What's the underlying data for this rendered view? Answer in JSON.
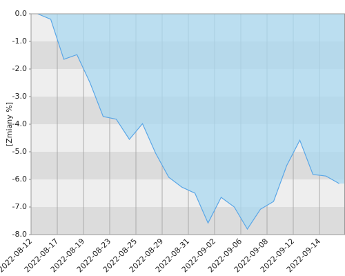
{
  "chart_data": {
    "type": "area",
    "y_label": "[Zmiany %]",
    "categories": [
      "2022-08-12",
      null,
      "2022-08-17",
      null,
      "2022-08-19",
      null,
      "2022-08-23",
      null,
      "2022-08-25",
      null,
      "2022-08-29",
      null,
      "2022-08-31",
      null,
      "2022-09-02",
      null,
      "2022-09-06",
      null,
      "2022-09-08",
      null,
      "2022-09-12",
      null,
      "2022-09-14",
      null
    ],
    "values": [
      0.0,
      -0.2,
      -1.65,
      -1.48,
      -2.5,
      -3.72,
      -3.82,
      -4.55,
      -3.98,
      -5.05,
      -5.92,
      -6.28,
      -6.5,
      -7.58,
      -6.65,
      -7.0,
      -7.8,
      -7.08,
      -6.8,
      -5.5,
      -4.58,
      -5.82,
      -5.88,
      -6.15
    ],
    "color": "#5aa6e6",
    "fill": "#a9d8f0",
    "ylim": [
      -8,
      0
    ],
    "yticks": [
      {
        "value": 0,
        "label": "0.0"
      },
      {
        "value": -1,
        "label": "-1.0"
      },
      {
        "value": -2,
        "label": "-2.0"
      },
      {
        "value": -3,
        "label": "-3.0"
      },
      {
        "value": -4,
        "label": "-4.0"
      },
      {
        "value": -5,
        "label": "-5.0"
      },
      {
        "value": -6,
        "label": "-6.0"
      },
      {
        "value": -7,
        "label": "-7.0"
      },
      {
        "value": -8,
        "label": "-8.0"
      }
    ],
    "grid": true
  }
}
